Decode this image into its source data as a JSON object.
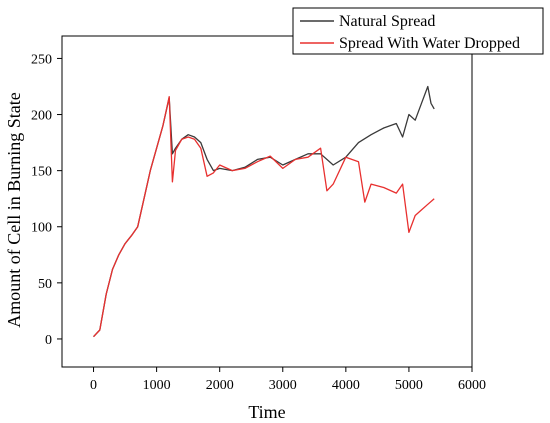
{
  "chart_data": {
    "type": "line",
    "title": "",
    "xlabel": "Time",
    "ylabel": "Amount of Cell in Burning State",
    "xlim": [
      -500,
      6000
    ],
    "ylim": [
      -25,
      270
    ],
    "xticks": [
      0,
      1000,
      2000,
      3000,
      4000,
      5000,
      6000
    ],
    "yticks": [
      0,
      50,
      100,
      150,
      200,
      250
    ],
    "legend_position": "top-right",
    "grid": false,
    "series": [
      {
        "name": "Natural Spread",
        "color": "#3a3a3a",
        "x": [
          0,
          100,
          200,
          300,
          400,
          500,
          600,
          700,
          800,
          900,
          1000,
          1100,
          1200,
          1250,
          1300,
          1400,
          1500,
          1600,
          1700,
          1800,
          1900,
          2000,
          2200,
          2400,
          2600,
          2800,
          3000,
          3200,
          3400,
          3600,
          3800,
          4000,
          4200,
          4400,
          4600,
          4800,
          4900,
          5000,
          5100,
          5200,
          5300,
          5350,
          5400
        ],
        "y": [
          2,
          8,
          40,
          62,
          75,
          85,
          92,
          100,
          125,
          150,
          170,
          190,
          215,
          165,
          170,
          178,
          182,
          180,
          175,
          160,
          150,
          152,
          150,
          153,
          160,
          162,
          155,
          160,
          165,
          165,
          155,
          162,
          175,
          182,
          188,
          192,
          180,
          200,
          195,
          210,
          225,
          210,
          205
        ]
      },
      {
        "name": "Spread With Water Dropped",
        "color": "#e8302f",
        "x": [
          0,
          100,
          200,
          300,
          400,
          500,
          600,
          700,
          800,
          900,
          1000,
          1100,
          1200,
          1250,
          1300,
          1400,
          1500,
          1600,
          1700,
          1800,
          1900,
          2000,
          2200,
          2400,
          2600,
          2800,
          3000,
          3200,
          3400,
          3600,
          3700,
          3800,
          4000,
          4200,
          4300,
          4400,
          4600,
          4800,
          4900,
          5000,
          5100,
          5200,
          5300,
          5400
        ],
        "y": [
          2,
          8,
          40,
          62,
          75,
          85,
          92,
          100,
          125,
          150,
          170,
          190,
          216,
          140,
          168,
          178,
          180,
          178,
          170,
          145,
          148,
          155,
          150,
          152,
          158,
          163,
          152,
          160,
          162,
          170,
          132,
          138,
          162,
          158,
          122,
          138,
          135,
          130,
          138,
          95,
          110,
          115,
          120,
          125
        ]
      }
    ]
  }
}
